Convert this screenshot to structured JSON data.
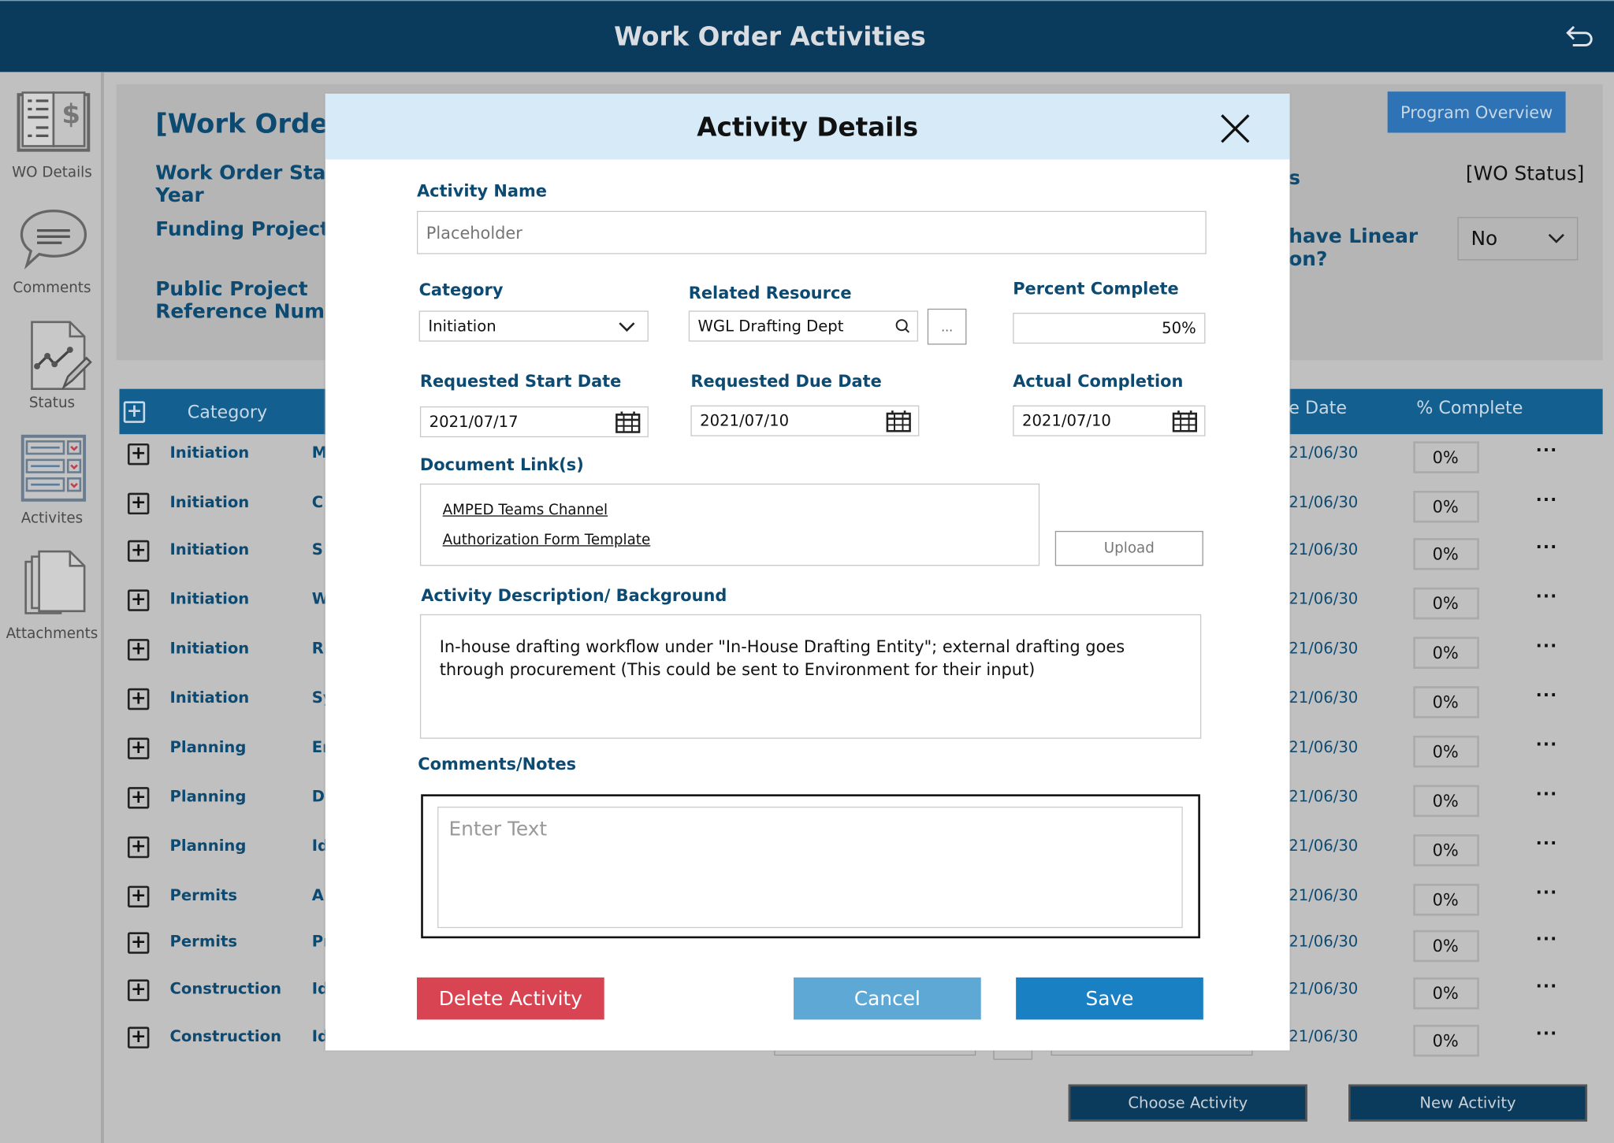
{
  "header": {
    "title": "Work Order Activities",
    "back_icon": "undo-arrow-icon"
  },
  "sidebar": {
    "items": [
      {
        "label": "WO Details",
        "icon": "ledger-dollar-icon"
      },
      {
        "label": "Comments",
        "icon": "speech-bubble-icon"
      },
      {
        "label": "Status",
        "icon": "chart-document-pencil-icon"
      },
      {
        "label": "Activites",
        "icon": "form-checklist-icon"
      },
      {
        "label": "Attachments",
        "icon": "documents-icon"
      }
    ]
  },
  "summary": {
    "title": "[Work Order T",
    "start_year_label": "Work Order Start",
    "start_year_label2": "Year",
    "funding_label": "Funding Project #",
    "public_ref_label": "Public Project",
    "public_ref_label2": "Reference Numb",
    "status_label_fragment": "s",
    "status_value": "[WO Status]",
    "linear_label_fragment": "have Linear",
    "linear_label_fragment2": "on?",
    "linear_value": "No",
    "program_overview_button": "Program Overview"
  },
  "table": {
    "headers": {
      "category": "Category",
      "due_date_fragment": "e Date",
      "complete": "% Complete"
    },
    "rows": [
      {
        "category": "Initiation",
        "activity": "M",
        "date": "21/06/30",
        "pct": "0%"
      },
      {
        "category": "Initiation",
        "activity": "C",
        "date": "21/06/30",
        "pct": "0%"
      },
      {
        "category": "Initiation",
        "activity": "S",
        "date": "21/06/30",
        "pct": "0%"
      },
      {
        "category": "Initiation",
        "activity": "W",
        "date": "21/06/30",
        "pct": "0%"
      },
      {
        "category": "Initiation",
        "activity": "Ri",
        "date": "21/06/30",
        "pct": "0%"
      },
      {
        "category": "Initiation",
        "activity": "Sy",
        "date": "21/06/30",
        "pct": "0%"
      },
      {
        "category": "Planning",
        "activity": "Er",
        "date": "21/06/30",
        "pct": "0%"
      },
      {
        "category": "Planning",
        "activity": "D",
        "date": "21/06/30",
        "pct": "0%"
      },
      {
        "category": "Planning",
        "activity": "Id",
        "date": "21/06/30",
        "pct": "0%"
      },
      {
        "category": "Permits",
        "activity": "A",
        "date": "21/06/30",
        "pct": "0%"
      },
      {
        "category": "Permits",
        "activity": "Pr",
        "date": "21/06/30",
        "pct": "0%"
      },
      {
        "category": "Construction",
        "activity": "Id",
        "date": "21/06/30",
        "pct": "0%"
      },
      {
        "category": "Construction",
        "activity": "Id",
        "date": "21/06/30",
        "pct": "0%"
      }
    ],
    "more_icon": "ellipsis-icon"
  },
  "footer": {
    "choose_activity": "Choose Activity",
    "new_activity": "New Activity"
  },
  "modal": {
    "title": "Activity Details",
    "activity_name_label": "Activity Name",
    "activity_name_placeholder": "Placeholder",
    "category_label": "Category",
    "category_value": "Initiation",
    "resource_label": "Related Resource",
    "resource_value": "WGL Drafting Dept",
    "resource_more": "...",
    "percent_label": "Percent Complete",
    "percent_value": "50%",
    "start_label": "Requested Start Date",
    "start_value": "2021/07/17",
    "due_label": "Requested Due Date",
    "due_value": "2021/07/10",
    "actual_label": "Actual Completion",
    "actual_value": "2021/07/10",
    "docs_label": "Document Link(s)",
    "links": [
      "AMPED Teams Channel",
      "Authorization Form Template"
    ],
    "upload": "Upload",
    "desc_label": "Activity Description/ Background",
    "desc_value": "In-house drafting workflow under \"In-House Drafting Entity\"; external drafting goes through procurement (This could be sent to Environment for their input)",
    "comments_label": "Comments/Notes",
    "comments_placeholder": "Enter Text",
    "delete": "Delete Activity",
    "cancel": "Cancel",
    "save": "Save",
    "colors": {
      "delete": "#d94452",
      "cancel": "#5ea8d6",
      "save": "#1a80c4",
      "header": "#d6ebf7"
    }
  }
}
